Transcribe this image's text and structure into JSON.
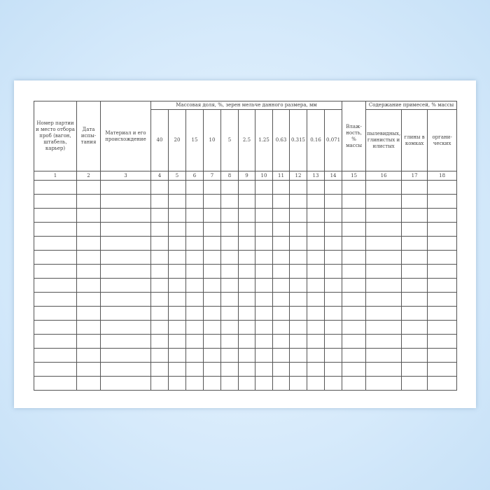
{
  "table": {
    "col1": "Номер партии и место отбора проб (вагон, штабель, карьер)",
    "col2": "Дата испы-тания",
    "col3": "Материал и его происхождение",
    "group_sizes": "Массовая доля, %, зерен мельче данного размера, мм",
    "sizes": [
      "40",
      "20",
      "15",
      "10",
      "5",
      "2.5",
      "1.25",
      "0.63",
      "0.315",
      "0.16",
      "0.071"
    ],
    "col15": "Влаж-ность, % массы",
    "group_impurities": "Содержание примесей, % массы",
    "impurities": [
      "пылевидных, глинистых и илистых",
      "глины в комках",
      "органи-ческих"
    ],
    "numbers": [
      "1",
      "2",
      "3",
      "4",
      "5",
      "6",
      "7",
      "8",
      "9",
      "10",
      "11",
      "12",
      "13",
      "14",
      "15",
      "16",
      "17",
      "18"
    ],
    "empty_rows": 15
  }
}
